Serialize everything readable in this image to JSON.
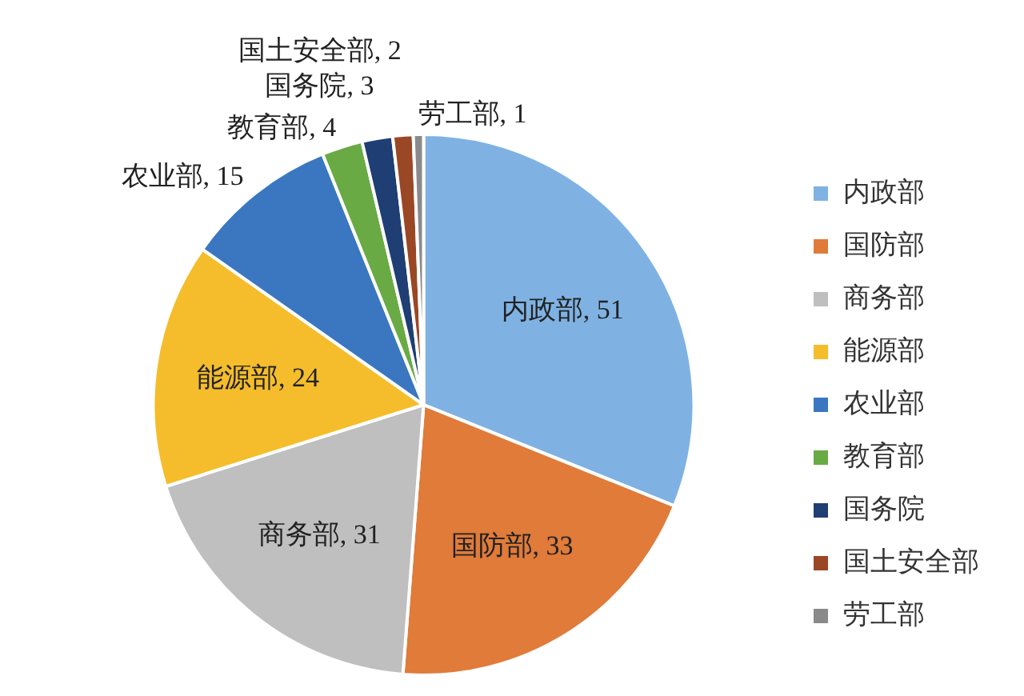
{
  "chart_data": {
    "type": "pie",
    "categories": [
      "内政部",
      "国防部",
      "商务部",
      "能源部",
      "农业部",
      "教育部",
      "国务院",
      "国土安全部",
      "劳工部"
    ],
    "values": [
      51,
      33,
      31,
      24,
      15,
      4,
      3,
      2,
      1
    ],
    "colors": [
      "#7fb2e3",
      "#e07b39",
      "#bfbfbf",
      "#f5bd2b",
      "#3a77c0",
      "#6aaa45",
      "#1f3e74",
      "#9a4726",
      "#8a8a8a"
    ],
    "value_labels": [
      "内政部, 51",
      "国防部, 33",
      "商务部, 31",
      "能源部, 24",
      "农业部, 15",
      "教育部, 4",
      "国务院, 3",
      "国土安全部, 2",
      "劳工部, 1"
    ],
    "legend": "right"
  }
}
